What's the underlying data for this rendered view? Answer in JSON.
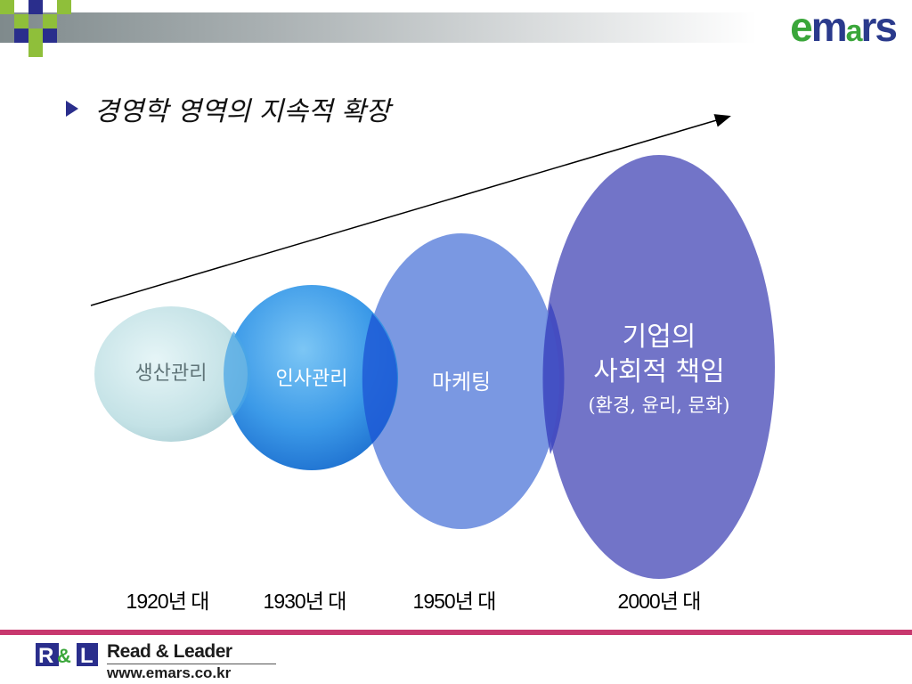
{
  "header": {
    "logo": {
      "part1": "e",
      "part2": "m",
      "part3": "a",
      "part4": "rs"
    }
  },
  "title": {
    "text": "경영학 영역의 지속적 확장"
  },
  "diagram": {
    "stages": [
      {
        "label": "생산관리",
        "decade": "1920년 대",
        "color": "#c6e6ea"
      },
      {
        "label": "인사관리",
        "decade": "1930년 대",
        "color": "#3a9be8"
      },
      {
        "label": "마케팅",
        "decade": "1950년 대",
        "color": "#6f8fe0"
      },
      {
        "label_line1": "기업의",
        "label_line2": "사회적 책임",
        "label_line3": "(환경, 윤리, 문화)",
        "decade": "2000년 대",
        "color": "#7274c8"
      }
    ]
  },
  "footer": {
    "logo_text": "R&L",
    "name": "Read & Leader",
    "url": "www.emars.co.kr",
    "accent_color": "#c8386e"
  }
}
